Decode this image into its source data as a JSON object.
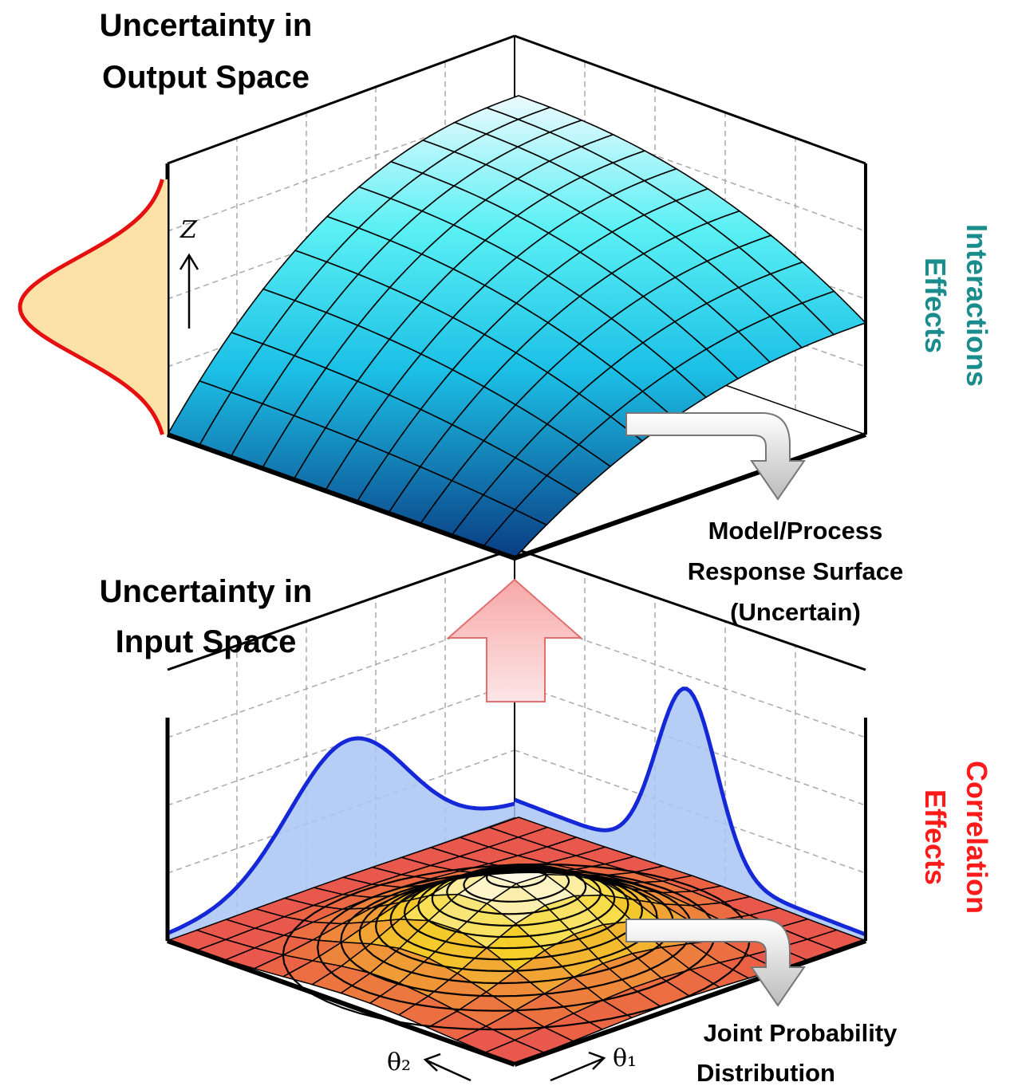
{
  "titles": {
    "output": [
      "Uncertainty in",
      "Output Space"
    ],
    "input": [
      "Uncertainty in",
      "Input Space"
    ]
  },
  "labels": {
    "response_surface": [
      "Model/Process",
      "Response Surface",
      "(Uncertain)"
    ],
    "joint_distribution": [
      "Joint Probability",
      "Distribution"
    ],
    "interactions": [
      "Interactions",
      "Effects"
    ],
    "correlation": [
      "Correlation",
      "Effects"
    ]
  },
  "axes": {
    "z": "Z",
    "theta2": "θ₂",
    "theta1": "θ₁"
  }
}
